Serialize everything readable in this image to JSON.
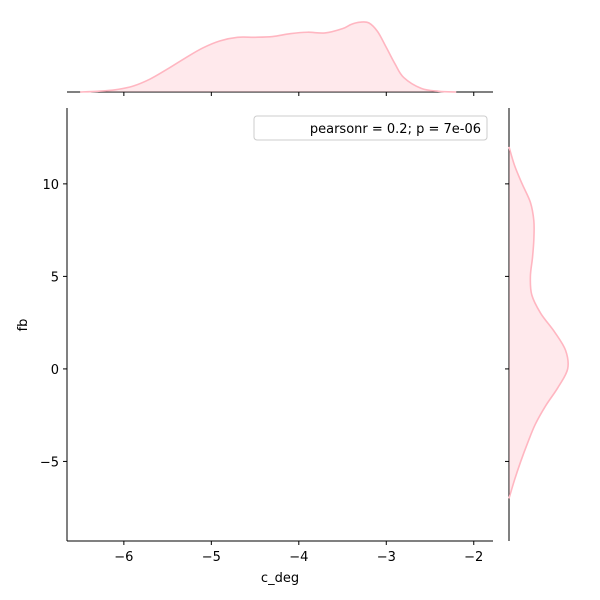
{
  "chart_data": {
    "type": "jointplot-kde",
    "xlabel": "c_deg",
    "ylabel": "fb",
    "xlim": [
      -6.65,
      -1.78
    ],
    "ylim": [
      -9.3,
      14.1
    ],
    "x_ticks": [
      -6,
      -5,
      -4,
      -3,
      -2
    ],
    "y_ticks": [
      -5,
      0,
      5,
      10
    ],
    "legend": {
      "text": "pearsonr = 0.2; p = 7e-06",
      "placement": "upper right"
    },
    "color": "#ffb6c1",
    "x_marginal_kde": {
      "x": [
        -6.5,
        -6.3,
        -6.1,
        -5.9,
        -5.7,
        -5.5,
        -5.3,
        -5.1,
        -4.9,
        -4.7,
        -4.5,
        -4.3,
        -4.1,
        -3.9,
        -3.7,
        -3.5,
        -3.4,
        -3.3,
        -3.2,
        -3.1,
        -3.0,
        -2.9,
        -2.8,
        -2.6,
        -2.4,
        -2.2
      ],
      "density": [
        0.0,
        0.01,
        0.03,
        0.08,
        0.18,
        0.32,
        0.47,
        0.61,
        0.71,
        0.76,
        0.76,
        0.77,
        0.81,
        0.83,
        0.82,
        0.88,
        0.94,
        0.97,
        0.96,
        0.84,
        0.62,
        0.39,
        0.2,
        0.05,
        0.01,
        0.0
      ]
    },
    "y_marginal_kde": {
      "y": [
        -7.0,
        -6.0,
        -5.0,
        -4.0,
        -3.0,
        -2.0,
        -1.0,
        0.0,
        1.0,
        2.0,
        3.0,
        4.0,
        5.0,
        6.0,
        7.0,
        8.0,
        9.0,
        10.0,
        11.0,
        12.0
      ],
      "density": [
        0.0,
        0.08,
        0.17,
        0.27,
        0.38,
        0.53,
        0.71,
        0.85,
        0.82,
        0.66,
        0.46,
        0.33,
        0.31,
        0.34,
        0.36,
        0.36,
        0.31,
        0.19,
        0.08,
        0.0
      ]
    }
  }
}
